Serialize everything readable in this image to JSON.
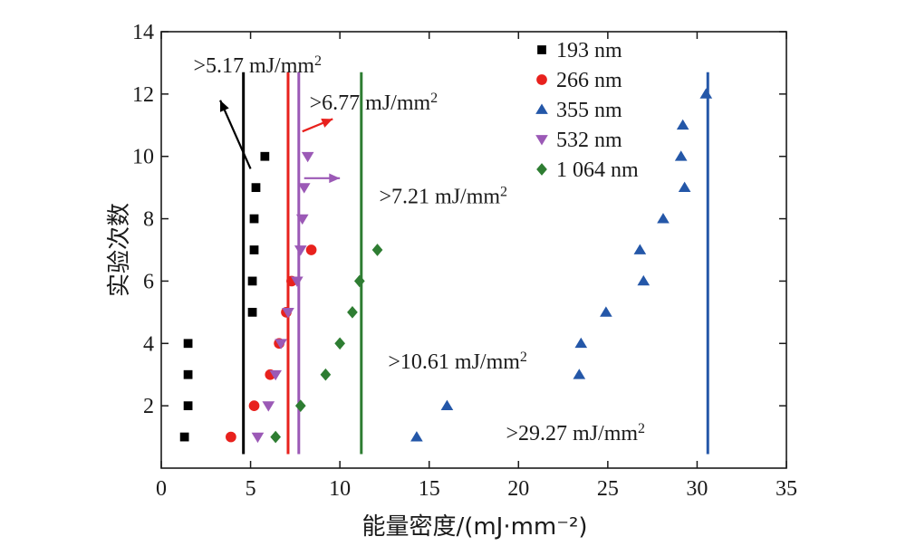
{
  "chart_data": {
    "type": "scatter",
    "title": "",
    "xlabel": "能量密度/(mJ·mm⁻²)",
    "ylabel": "实验次数",
    "xlim": [
      0,
      35
    ],
    "ylim": [
      0,
      14
    ],
    "xticks": [
      0,
      5,
      10,
      15,
      20,
      25,
      30,
      35
    ],
    "yticks": [
      2,
      4,
      6,
      8,
      10,
      12,
      14
    ],
    "grid": false,
    "legend_position": "top-right",
    "series": [
      {
        "name": "193 nm",
        "marker": "square",
        "color": "#000000",
        "points": [
          [
            1.3,
            1
          ],
          [
            1.5,
            2
          ],
          [
            1.5,
            3
          ],
          [
            1.5,
            4
          ],
          [
            5.1,
            5
          ],
          [
            5.1,
            6
          ],
          [
            5.2,
            7
          ],
          [
            5.2,
            8
          ],
          [
            5.3,
            9
          ],
          [
            5.8,
            10
          ]
        ],
        "threshold": 4.6
      },
      {
        "name": "266 nm",
        "marker": "circle",
        "color": "#e8211d",
        "points": [
          [
            3.9,
            1
          ],
          [
            5.2,
            2
          ],
          [
            6.1,
            3
          ],
          [
            6.6,
            4
          ],
          [
            7.0,
            5
          ],
          [
            7.3,
            6
          ],
          [
            8.4,
            7
          ]
        ],
        "threshold": 7.1
      },
      {
        "name": "355 nm",
        "marker": "triangle-up",
        "color": "#2457a8",
        "points": [
          [
            14.3,
            1
          ],
          [
            16.0,
            2
          ],
          [
            23.4,
            3
          ],
          [
            23.5,
            4
          ],
          [
            24.9,
            5
          ],
          [
            27.0,
            6
          ],
          [
            26.8,
            7
          ],
          [
            28.1,
            8
          ],
          [
            29.3,
            9
          ],
          [
            29.1,
            10
          ],
          [
            29.2,
            11
          ],
          [
            30.5,
            12
          ]
        ],
        "threshold": 30.6
      },
      {
        "name": "532 nm",
        "marker": "triangle-down",
        "color": "#9b59b6",
        "points": [
          [
            5.4,
            1
          ],
          [
            6.0,
            2
          ],
          [
            6.4,
            3
          ],
          [
            6.7,
            4
          ],
          [
            7.1,
            5
          ],
          [
            7.6,
            6
          ],
          [
            7.8,
            7
          ],
          [
            7.9,
            8
          ],
          [
            8.0,
            9
          ],
          [
            8.2,
            10
          ]
        ],
        "threshold": 7.7
      },
      {
        "name": "1 064 nm",
        "marker": "diamond",
        "color": "#2e7d32",
        "points": [
          [
            6.4,
            1
          ],
          [
            7.8,
            2
          ],
          [
            9.2,
            3
          ],
          [
            10.0,
            4
          ],
          [
            10.7,
            5
          ],
          [
            11.1,
            6
          ],
          [
            12.1,
            7
          ]
        ],
        "threshold": 11.2
      }
    ],
    "annotations": [
      {
        "text": ">5.17 mJ/mm",
        "sup": "2",
        "color": "#000000",
        "x": 1.8,
        "y": 12.7
      },
      {
        "text": ">6.77 mJ/mm",
        "sup": "2",
        "color": "#1a1a1a",
        "x": 8.3,
        "y": 11.5
      },
      {
        "text": ">7.21 mJ/mm",
        "sup": "2",
        "color": "#1a1a1a",
        "x": 12.2,
        "y": 8.5
      },
      {
        "text": ">10.61 mJ/mm",
        "sup": "2",
        "color": "#1a1a1a",
        "x": 12.7,
        "y": 3.2
      },
      {
        "text": ">29.27 mJ/mm",
        "sup": "2",
        "color": "#1a1a1a",
        "x": 19.3,
        "y": 0.9
      }
    ],
    "arrows": [
      {
        "color": "#000000",
        "from": [
          5.0,
          9.6
        ],
        "to": [
          3.3,
          11.8
        ]
      },
      {
        "color": "#e8211d",
        "from": [
          7.9,
          10.8
        ],
        "to": [
          9.6,
          11.2
        ]
      },
      {
        "color": "#9b59b6",
        "from": [
          8.0,
          9.3
        ],
        "to": [
          10.0,
          9.3
        ]
      }
    ]
  }
}
